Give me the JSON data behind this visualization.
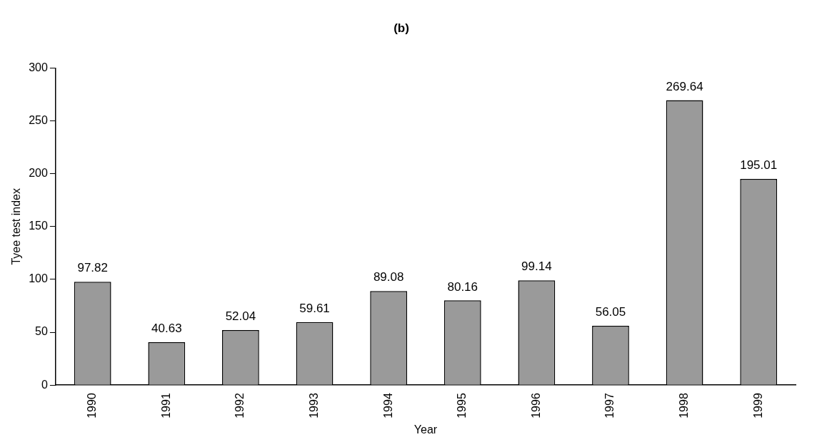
{
  "chart_data": {
    "type": "bar",
    "title": "(b)",
    "xlabel": "Year",
    "ylabel": "Tyee test index",
    "categories": [
      "1990",
      "1991",
      "1992",
      "1993",
      "1994",
      "1995",
      "1996",
      "1997",
      "1998",
      "1999"
    ],
    "values": [
      97.82,
      40.63,
      52.04,
      59.61,
      89.08,
      80.16,
      99.14,
      56.05,
      269.64,
      195.01
    ],
    "color": "#9a9a9a",
    "ylim": [
      0,
      300
    ],
    "yticks": [
      0,
      50,
      100,
      150,
      200,
      250,
      300
    ],
    "grid": false,
    "legend": false,
    "data_labels": true
  }
}
